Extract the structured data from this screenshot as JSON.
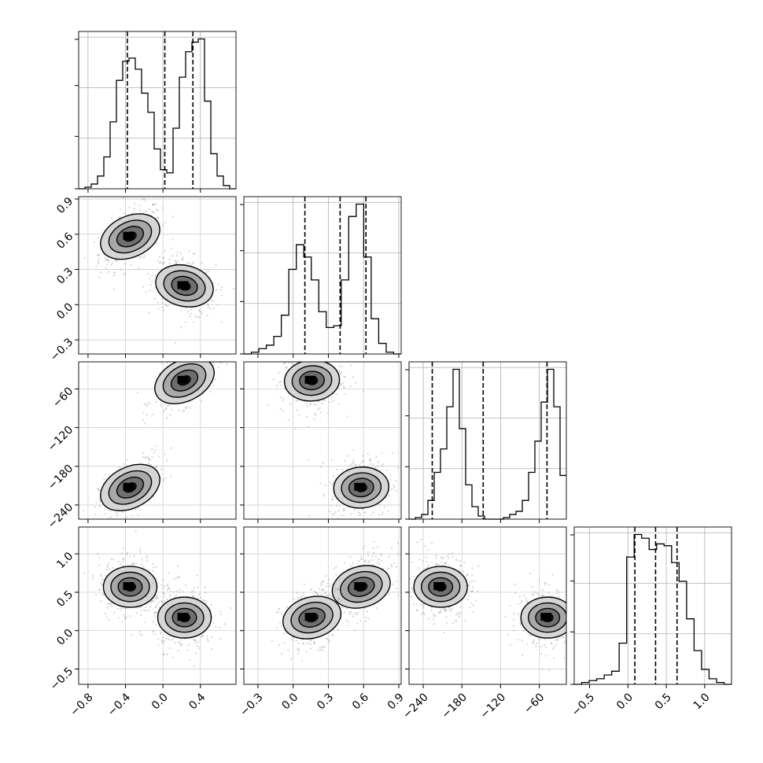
{
  "chart_data": {
    "type": "corner",
    "grid": true,
    "params": [
      {
        "ticks": [
          "−0.8",
          "−0.4",
          "0.0",
          "0.4"
        ],
        "tick_values": [
          -0.8,
          -0.4,
          0.0,
          0.4
        ],
        "range": [
          -0.9,
          0.78
        ]
      },
      {
        "ticks": [
          "−0.3",
          "0.0",
          "0.3",
          "0.6",
          "0.9"
        ],
        "tick_values": [
          -0.3,
          0.0,
          0.3,
          0.6,
          0.9
        ],
        "range": [
          -0.42,
          0.92
        ]
      },
      {
        "ticks": [
          "−240",
          "−180",
          "−120",
          "−60"
        ],
        "tick_values": [
          -240,
          -180,
          -120,
          -60
        ],
        "range": [
          -262,
          -18
        ]
      },
      {
        "ticks": [
          "−0.5",
          "0.0",
          "0.5",
          "1.0"
        ],
        "tick_values": [
          -0.5,
          0.0,
          0.5,
          1.0
        ],
        "range": [
          -0.7,
          1.35
        ]
      }
    ],
    "histograms": [
      {
        "param": 0,
        "quantiles": [
          -0.38,
          0.02,
          0.32
        ],
        "counts": [
          0,
          1,
          3,
          8,
          20,
          42,
          68,
          80,
          82,
          75,
          60,
          48,
          25,
          12,
          10,
          38,
          70,
          86,
          92,
          94,
          55,
          22,
          8,
          2,
          0
        ]
      },
      {
        "param": 1,
        "quantiles": [
          0.1,
          0.4,
          0.62
        ],
        "counts": [
          0,
          1,
          3,
          5,
          10,
          22,
          48,
          62,
          55,
          42,
          24,
          15,
          16,
          42,
          78,
          85,
          55,
          20,
          6,
          1,
          0
        ]
      },
      {
        "param": 2,
        "quantiles": [
          -226,
          -147,
          -48
        ],
        "counts": [
          0,
          1,
          3,
          12,
          30,
          45,
          72,
          96,
          58,
          22,
          8,
          2,
          0,
          0,
          0,
          1,
          3,
          5,
          12,
          30,
          50,
          75,
          96,
          72,
          28
        ]
      },
      {
        "param": 3,
        "quantiles": [
          0.09,
          0.36,
          0.64
        ],
        "counts": [
          0,
          1,
          2,
          3,
          5,
          7,
          22,
          68,
          80,
          78,
          72,
          75,
          74,
          65,
          55,
          35,
          18,
          8,
          3,
          1,
          0
        ]
      }
    ],
    "modes": {
      "p0": [
        -0.35,
        0.23
      ],
      "p1": [
        0.58,
        0.16
      ],
      "p2": [
        -213,
        -47
      ],
      "p3": [
        0.57,
        0.17
      ]
    }
  }
}
